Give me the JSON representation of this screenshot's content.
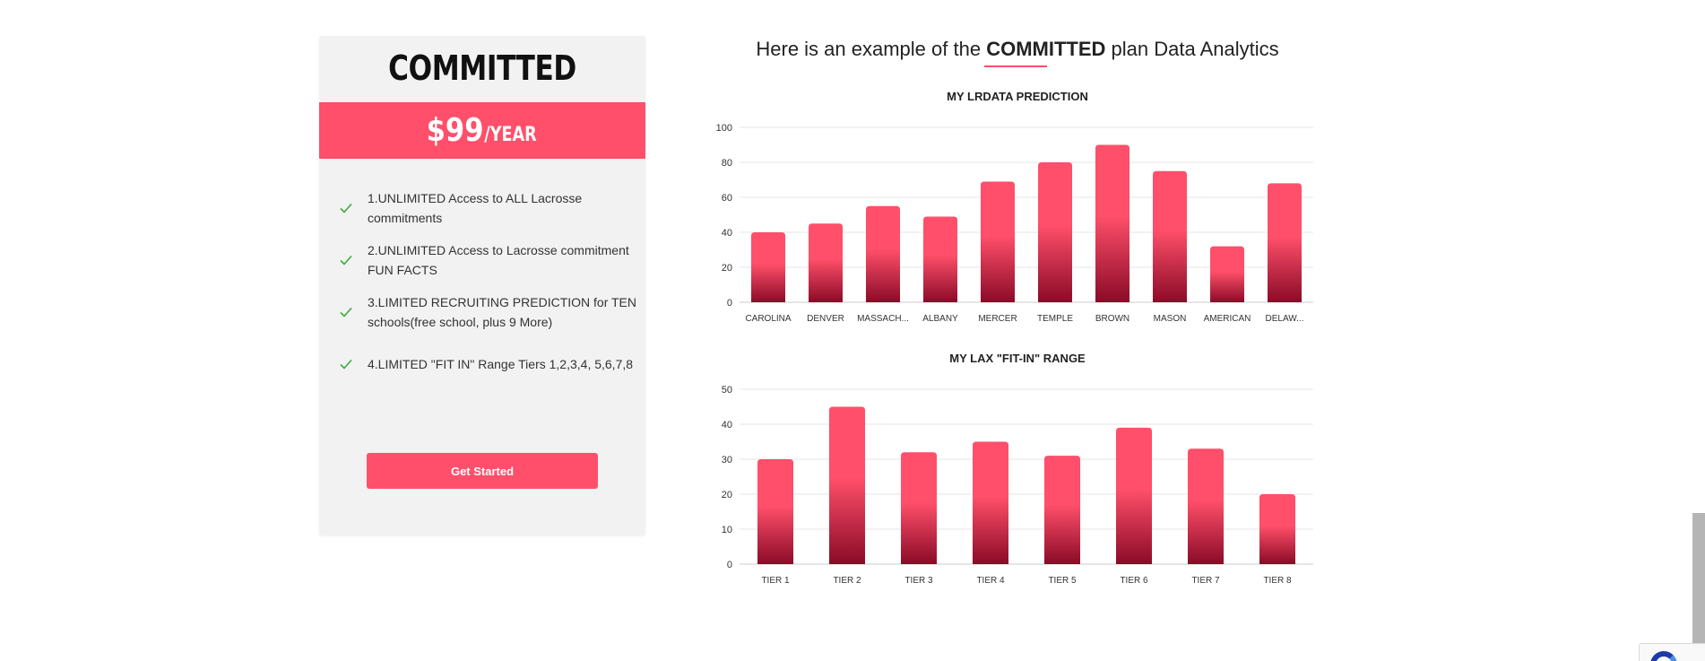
{
  "plan": {
    "name": "COMMITTED",
    "price": "$99",
    "period": "/YEAR",
    "features": [
      "1.UNLIMITED Access to ALL Lacrosse commitments",
      "2.UNLIMITED Access to Lacrosse commitment FUN FACTS",
      "3.LIMITED RECRUITING PREDICTION for TEN schools(free school, plus 9 More)",
      "4.LIMITED \"FIT IN\" Range Tiers 1,2,3,4, 5,6,7,8"
    ],
    "cta_label": "Get Started"
  },
  "analytics": {
    "heading_prefix": "Here is an example of the ",
    "heading_bold": "COMMITTED",
    "heading_suffix": " plan Data Analytics"
  },
  "colors": {
    "accent": "#ff4f6a",
    "bar_top": "#ff4f6a",
    "bar_bottom": "#8a0b27",
    "check": "#3aaa35"
  },
  "chart_data": [
    {
      "type": "bar",
      "title": "MY LRDATA PREDICTION",
      "categories": [
        "CAROLINA",
        "DENVER",
        "MASSACH...",
        "ALBANY",
        "MERCER",
        "TEMPLE",
        "BROWN",
        "MASON",
        "AMERICAN",
        "DELAW..."
      ],
      "values": [
        40,
        45,
        55,
        49,
        69,
        80,
        90,
        75,
        32,
        68
      ],
      "yticks": [
        "0",
        "20",
        "40",
        "60",
        "80",
        "100"
      ],
      "ylim": [
        0,
        100
      ],
      "grid": true
    },
    {
      "type": "bar",
      "title": "MY LAX \"FIT-IN\" RANGE",
      "categories": [
        "TIER 1",
        "TIER 2",
        "TIER 3",
        "TIER 4",
        "TIER 5",
        "TIER 6",
        "TIER 7",
        "TIER 8"
      ],
      "values": [
        30,
        45,
        32,
        35,
        31,
        39,
        33,
        20
      ],
      "yticks": [
        "0",
        "10",
        "20",
        "30",
        "40",
        "50"
      ],
      "ylim": [
        0,
        50
      ],
      "grid": true
    }
  ]
}
